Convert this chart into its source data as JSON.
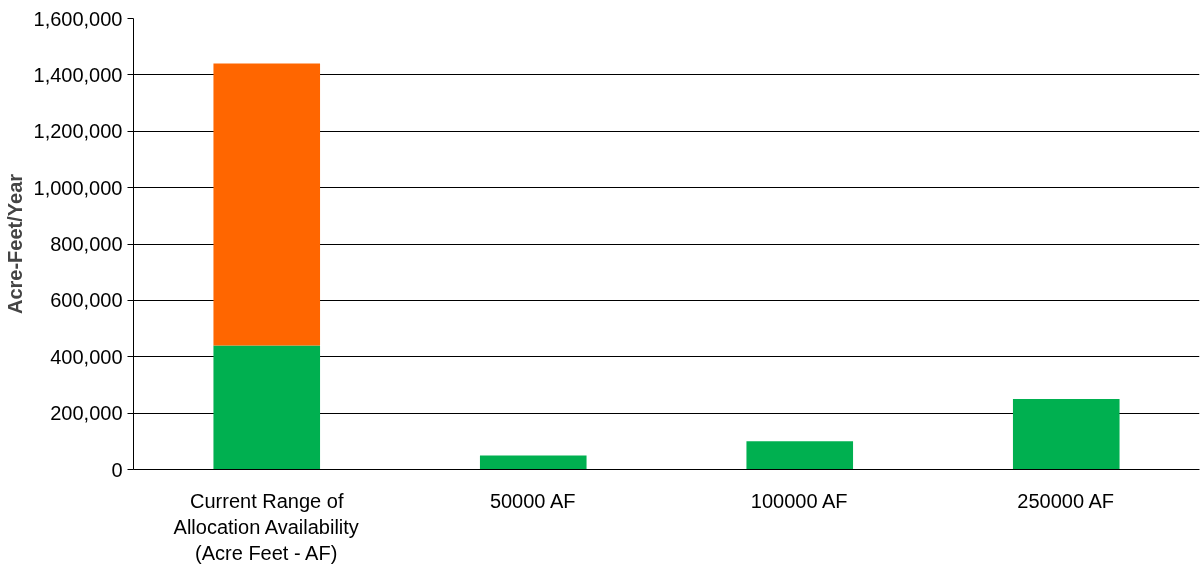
{
  "chart_data": {
    "type": "bar",
    "stacked": true,
    "ylabel": "Acre-Feet/Year",
    "categories": [
      "Current Range of\nAllocation Availability\n(Acre Feet - AF)",
      "50000 AF",
      "100000 AF",
      "250000 AF"
    ],
    "series": [
      {
        "color": "#00b050",
        "values": [
          440000,
          50000,
          100000,
          250000
        ]
      },
      {
        "color": "#ff6600",
        "values": [
          1000000,
          null,
          null,
          null
        ]
      }
    ],
    "ylim": [
      0,
      1600000
    ],
    "yticks": [
      0,
      {
        "value": 200000,
        "label": "200,000"
      },
      {
        "value": 400000,
        "label": "400,000"
      },
      {
        "value": 600000,
        "label": "600,000"
      },
      {
        "value": 800000,
        "label": "800,000"
      },
      {
        "value": 1000000,
        "label": "1,000,000"
      },
      {
        "value": 1200000,
        "label": "1,200,000"
      },
      {
        "value": 1400000,
        "label": "1,400,000"
      },
      {
        "value": 1600000,
        "label": "1,600,000"
      }
    ],
    "grid": "y"
  }
}
